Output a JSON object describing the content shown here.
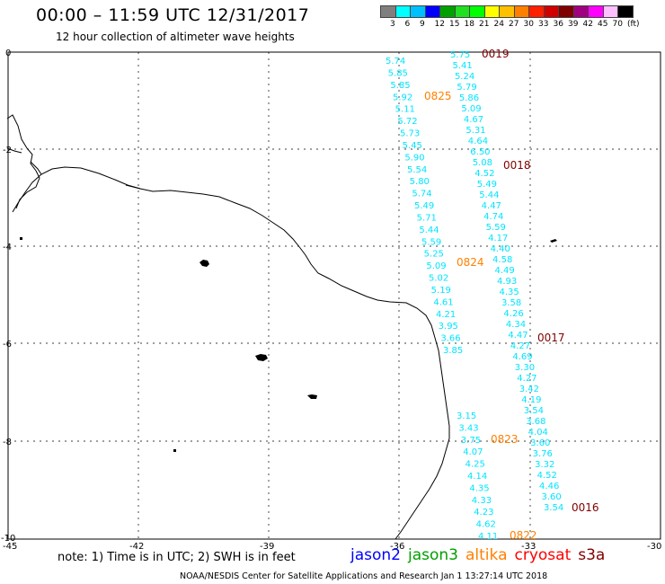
{
  "header": {
    "title": "00:00 – 11:59 UTC 12/31/2017",
    "subtitle": "12 hour collection of altimeter wave heights"
  },
  "colorbar": {
    "colors": [
      "#7f7f7f",
      "#00ffff",
      "#00bfff",
      "#0000ff",
      "#00a000",
      "#20e020",
      "#00ff00",
      "#ffff00",
      "#ffc000",
      "#ff8000",
      "#ff2000",
      "#d00000",
      "#800000",
      "#a00080",
      "#ff00ff",
      "#ffc0ff",
      "#000000"
    ],
    "labels": [
      "3",
      "6",
      "9",
      "12",
      "15",
      "18",
      "21",
      "24",
      "27",
      "30",
      "33",
      "36",
      "39",
      "42",
      "45",
      "70",
      "(ft)"
    ]
  },
  "axes": {
    "x_ticks": [
      "-45",
      "-42",
      "-39",
      "-36",
      "-33",
      "-30"
    ],
    "y_ticks": [
      "0",
      "-2",
      "-4",
      "-6",
      "-8",
      "-10"
    ]
  },
  "tracks": {
    "track_a": [
      "5.74",
      "5.85",
      "5.85",
      "5.92",
      "5.11",
      "5.72",
      "5.73",
      "5.45",
      "5.90",
      "5.54",
      "5.80",
      "5.74",
      "5.49",
      "5.71",
      "5.44",
      "5.59",
      "5.25",
      "5.09",
      "5.02",
      "5.19",
      "4.61",
      "4.21",
      "3.95",
      "3.66",
      "3.85"
    ],
    "track_b": [
      "5.75",
      "5.41",
      "5.24",
      "5.79",
      "5.86",
      "5.09",
      "4.67",
      "5.31",
      "4.64",
      "6.50",
      "5.08",
      "4.52",
      "5.49",
      "5.44",
      "4.47",
      "4.74",
      "5.59",
      "4.17",
      "4.40",
      "4.58",
      "4.49",
      "4.93",
      "4.35",
      "3.58",
      "4.26",
      "4.34",
      "4.47",
      "4.27",
      "4.69",
      "3.30",
      "4.27",
      "3.42",
      "4.19",
      "3.54",
      "3.68",
      "4.04",
      "3.60",
      "3.76",
      "3.32",
      "4.52",
      "4.46",
      "3.60",
      "3.54"
    ],
    "track_c": [
      "3.15",
      "3.43",
      "3.75",
      "4.07",
      "4.25",
      "4.14",
      "4.35",
      "4.33",
      "4.23",
      "4.62",
      "4.11"
    ],
    "labels": [
      {
        "text": "0019",
        "color": "#800000"
      },
      {
        "text": "0825",
        "color": "#ff8000"
      },
      {
        "text": "0018",
        "color": "#800000"
      },
      {
        "text": "0824",
        "color": "#ff8000"
      },
      {
        "text": "0017",
        "color": "#800000"
      },
      {
        "text": "0823",
        "color": "#ff8000"
      },
      {
        "text": "0016",
        "color": "#800000"
      },
      {
        "text": "0822",
        "color": "#ff8000"
      }
    ]
  },
  "footer": {
    "note": "note: 1) Time is in UTC; 2) SWH is in feet",
    "source": "NOAA/NESDIS Center for Satellite Applications and Research   Jan  1 13:27:14 UTC 2018",
    "satellites": [
      {
        "name": "jason2",
        "color": "#0000ff"
      },
      {
        "name": "jason3",
        "color": "#00a000"
      },
      {
        "name": "altika",
        "color": "#ff8000"
      },
      {
        "name": "cryosat",
        "color": "#ff0000"
      },
      {
        "name": "s3a",
        "color": "#800000"
      }
    ]
  }
}
